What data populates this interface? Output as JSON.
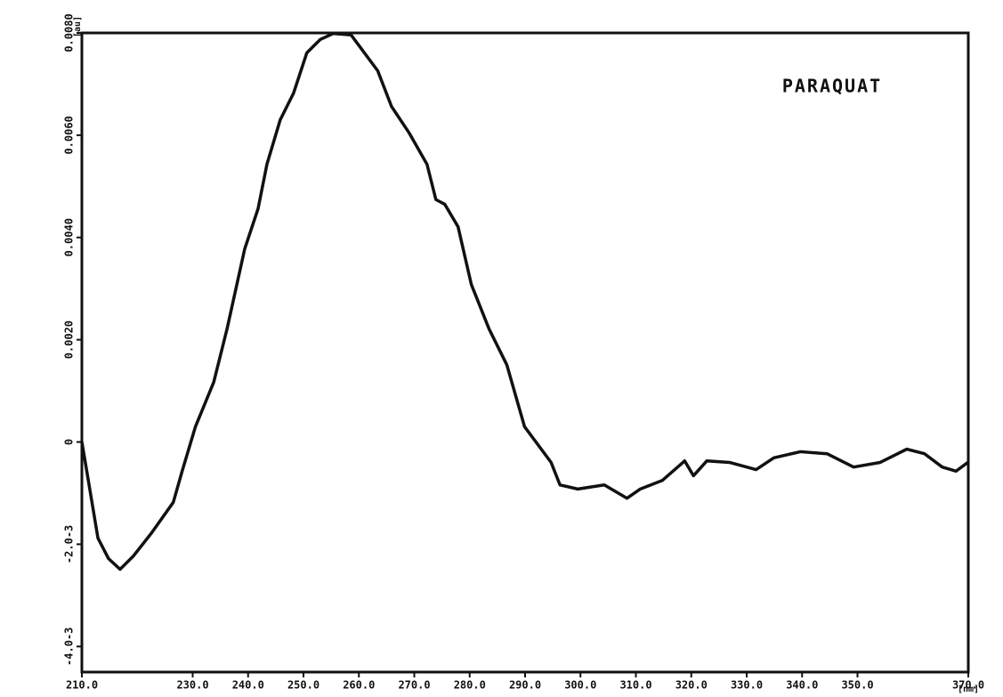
{
  "chart_data": {
    "type": "line",
    "title": "PARAQUAT",
    "x_unit": "[nm]",
    "y_unit": "[au]",
    "x": [
      210,
      211.3,
      212.9,
      214.8,
      216.9,
      219.3,
      222.5,
      226.5,
      228.1,
      230.5,
      233.8,
      236.2,
      239.4,
      241.8,
      243.4,
      245.8,
      248.2,
      250.6,
      253.0,
      255.4,
      258.6,
      261.0,
      263.4,
      265.9,
      269.1,
      272.3,
      273.9,
      275.5,
      277.9,
      280.3,
      283.5,
      286.7,
      289.9,
      292.3,
      294.7,
      296.3,
      299.5,
      304.3,
      308.4,
      310.8,
      314.8,
      318.8,
      320.4,
      322.8,
      326.9,
      331.7,
      334.9,
      339.7,
      344.5,
      349.3,
      354.1,
      358.9,
      362.1,
      365.3,
      367.8,
      369.9
    ],
    "series": [
      {
        "color": "#111111",
        "values": [
          0,
          -0.00084,
          -0.00188,
          -0.00228,
          -0.00249,
          -0.00223,
          -0.00179,
          -0.00118,
          -0.00057,
          0.0003,
          0.00117,
          0.00221,
          0.00378,
          0.00456,
          0.00543,
          0.0063,
          0.00682,
          0.00761,
          0.00787,
          0.00799,
          0.00796,
          0.00761,
          0.00726,
          0.00656,
          0.00604,
          0.00543,
          0.00474,
          0.00465,
          0.00421,
          0.00308,
          0.00221,
          0.00151,
          0.0003,
          -5e-05,
          -0.0004,
          -0.00084,
          -0.00092,
          -0.00084,
          -0.0011,
          -0.00092,
          -0.00075,
          -0.00037,
          -0.00066,
          -0.00037,
          -0.0004,
          -0.00054,
          -0.00031,
          -0.00019,
          -0.00023,
          -0.00049,
          -0.0004,
          -0.00014,
          -0.00023,
          -0.00049,
          -0.00057,
          -0.0004
        ]
      }
    ],
    "xlim": [
      210,
      370
    ],
    "ylim": [
      -0.0045,
      0.008
    ],
    "xticks": [
      {
        "value": 210,
        "label": "210.0"
      },
      {
        "value": 230,
        "label": "230.0"
      },
      {
        "value": 240,
        "label": "240.0"
      },
      {
        "value": 250,
        "label": "250.0"
      },
      {
        "value": 260,
        "label": "260.0"
      },
      {
        "value": 270,
        "label": "270.0"
      },
      {
        "value": 280,
        "label": "280.0"
      },
      {
        "value": 290,
        "label": "290.0"
      },
      {
        "value": 300,
        "label": "300.0"
      },
      {
        "value": 310,
        "label": "310.0"
      },
      {
        "value": 320,
        "label": "320.0"
      },
      {
        "value": 330,
        "label": "330.0"
      },
      {
        "value": 340,
        "label": "340.0"
      },
      {
        "value": 350,
        "label": "350.0"
      },
      {
        "value": 370,
        "label": "370.0"
      }
    ],
    "yticks": [
      {
        "value": 0.008,
        "label": "0.0080"
      },
      {
        "value": 0.006,
        "label": "0.0060"
      },
      {
        "value": 0.004,
        "label": "0.0040"
      },
      {
        "value": 0.002,
        "label": "0.0020"
      },
      0,
      {
        "value": -0.002,
        "label": "-2.0-3"
      },
      {
        "value": -0.004,
        "label": "-4.0-3"
      }
    ]
  }
}
